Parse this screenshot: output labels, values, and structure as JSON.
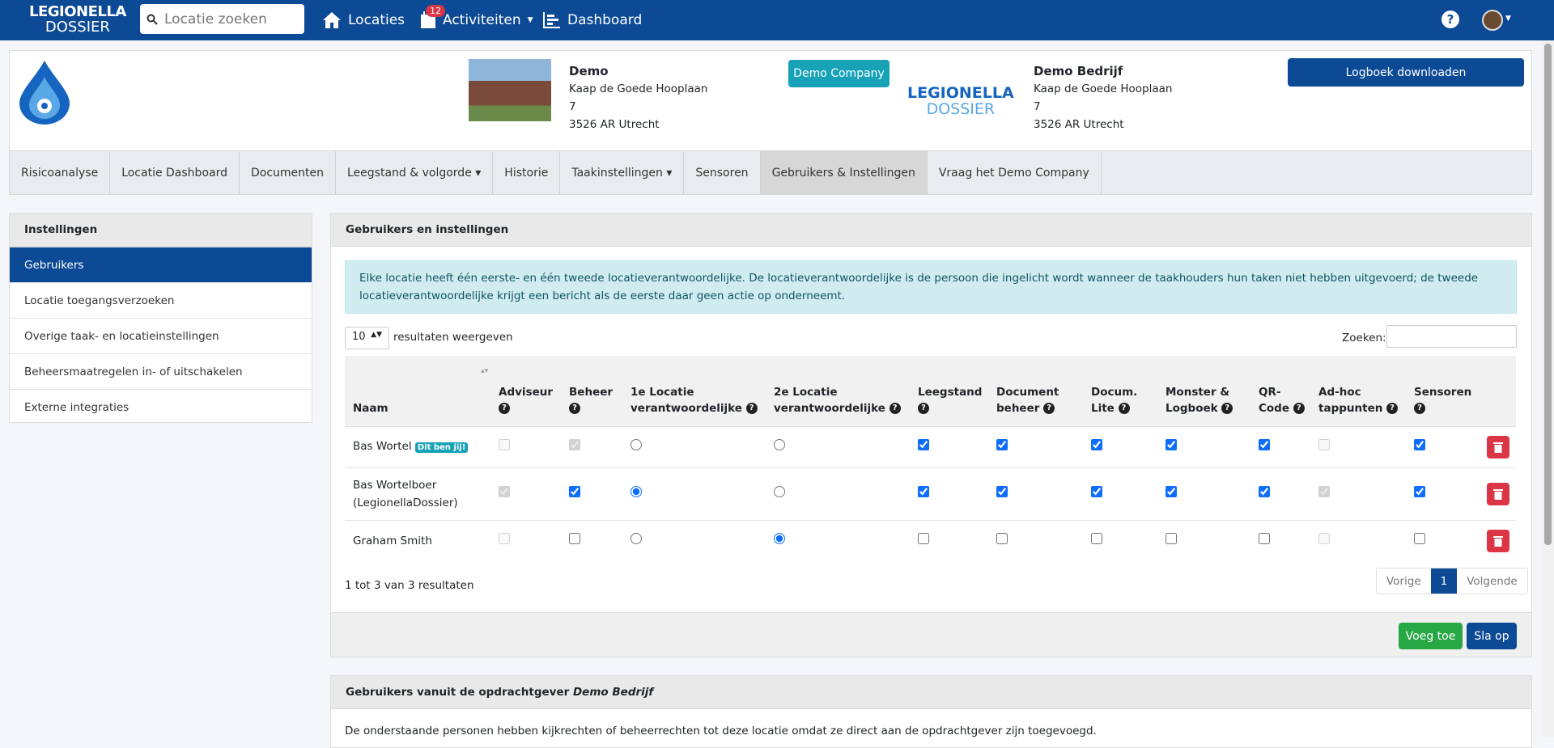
{
  "nav": {
    "logo_top": "LEGIONELLA",
    "logo_bottom": "DOSSIER",
    "search_placeholder": "Locatie zoeken",
    "locaties": "Locaties",
    "badge": "12",
    "activiteiten": "Activiteiten",
    "dashboard": "Dashboard",
    "help": "?"
  },
  "location": {
    "name": "Demo",
    "street": "Kaap de Goede Hooplaan",
    "number": "7",
    "city": "3526 AR Utrecht",
    "company_button": "Demo Company",
    "client_name": "Demo Bedrijf",
    "client_street": "Kaap de Goede Hooplaan",
    "client_number": "7",
    "client_city": "3526 AR Utrecht",
    "download": "Logboek downloaden",
    "client_logo_top": "LEGIONELLA",
    "client_logo_bottom": "DOSSIER"
  },
  "tabs": [
    "Risicoanalyse",
    "Locatie Dashboard",
    "Documenten",
    "Leegstand & volgorde",
    "Historie",
    "Taakinstellingen",
    "Sensoren",
    "Gebruikers & Instellingen",
    "Vraag het Demo Company"
  ],
  "sidebar": {
    "title": "Instellingen",
    "items": [
      "Gebruikers",
      "Locatie toegangsverzoeken",
      "Overige taak- en locatieinstellingen",
      "Beheersmaatregelen in- of uitschakelen",
      "Externe integraties"
    ]
  },
  "main": {
    "title": "Gebruikers en instellingen",
    "alert": "Elke locatie heeft één eerste- en één tweede locatieverantwoordelijke. De locatieverantwoordelijke is de persoon die ingelicht wordt wanneer de taakhouders hun taken niet hebben uitgevoerd; de tweede locatieverantwoordelijke krijgt een bericht als de eerste daar geen actie op onderneemt.",
    "page_size": "10",
    "page_size_label": "resultaten weergeven",
    "search_label": "Zoeken:",
    "table": {
      "headers": [
        "Naam",
        "Adviseur",
        "Beheer",
        "1e Locatie verantwoordelijke",
        "2e Locatie verantwoordelijke",
        "Leegstand",
        "Document beheer",
        "Docum. Lite",
        "Monster & Logboek",
        "QR-Code",
        "Ad-hoc tappunten",
        "Sensoren"
      ],
      "rows": [
        {
          "name": "Bas Wortel",
          "tag": "Dit ben jij!"
        },
        {
          "name": "Bas Wortelboer (LegionellaDossier)"
        },
        {
          "name": "Graham Smith"
        }
      ]
    },
    "info": "1 tot 3 van 3 resultaten",
    "prev": "Vorige",
    "page": "1",
    "next": "Volgende",
    "add": "Voeg toe",
    "save": "Sla op"
  },
  "second": {
    "title": "Gebruikers vanuit de opdrachtgever",
    "title_client": "Demo Bedrijf",
    "text": "De onderstaande personen hebben kijkrechten of beheerrechten tot deze locatie omdat ze direct aan de opdrachtgever zijn toegevoegd."
  }
}
